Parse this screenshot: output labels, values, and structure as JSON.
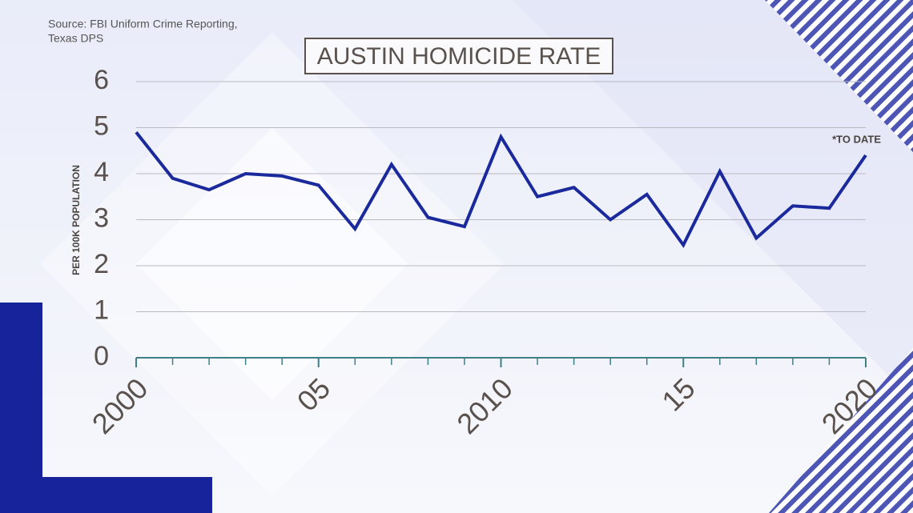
{
  "chart_data": {
    "type": "line",
    "title": "AUSTIN HOMICIDE RATE",
    "source": "Source: FBI Uniform Crime Reporting,",
    "source_line2": "Texas DPS",
    "y_label": "PER 100K POPULATION",
    "annotation": "*TO DATE",
    "x": [
      2000,
      2001,
      2002,
      2003,
      2004,
      2005,
      2006,
      2007,
      2008,
      2009,
      2010,
      2011,
      2012,
      2013,
      2014,
      2015,
      2016,
      2017,
      2018,
      2019,
      2020
    ],
    "values": [
      4.9,
      3.9,
      3.65,
      4.0,
      3.95,
      3.75,
      2.8,
      4.2,
      3.05,
      2.85,
      4.8,
      3.5,
      3.7,
      3.0,
      3.55,
      2.45,
      4.05,
      2.6,
      3.3,
      3.25,
      4.4
    ],
    "color": "#1a2a9c",
    "xlim": [
      2000,
      2020
    ],
    "xticks": [
      2000,
      {
        "value": 2005,
        "label": "05"
      },
      2010,
      {
        "value": 2015,
        "label": "15"
      },
      2020
    ],
    "ylim": [
      0,
      6
    ],
    "yticks": [
      0,
      1,
      2,
      3,
      4,
      5,
      6
    ],
    "grid": true
  }
}
